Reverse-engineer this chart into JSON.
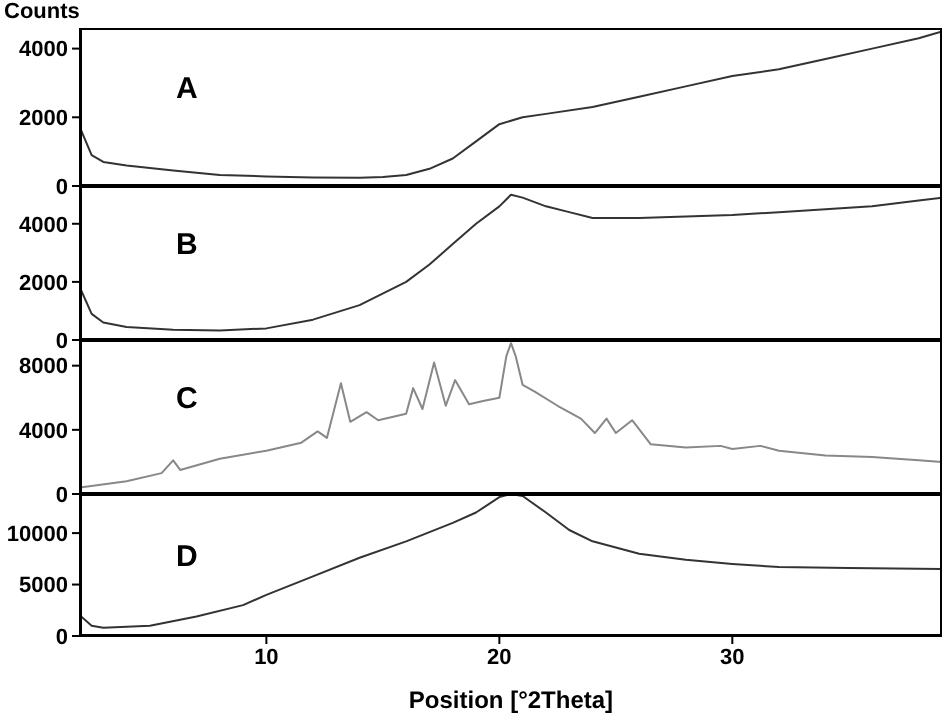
{
  "chart_data": [
    {
      "type": "line",
      "ylabel": "Counts",
      "annotations": [
        "A"
      ],
      "xlim": [
        2,
        39
      ],
      "xticks": [
        10,
        20,
        30
      ],
      "ylim": [
        0,
        4600
      ],
      "yticks": [
        0,
        2000,
        4000
      ],
      "tick_labels": "y",
      "series": [
        {
          "color": "#333333",
          "x": [
            2,
            2.5,
            3,
            4,
            6,
            8,
            10,
            12,
            14,
            15,
            16,
            17,
            18,
            19,
            20,
            21,
            22,
            24,
            26,
            28,
            30,
            32,
            34,
            36,
            38,
            39
          ],
          "values": [
            1700,
            900,
            700,
            600,
            450,
            320,
            280,
            250,
            240,
            260,
            320,
            500,
            800,
            1300,
            1800,
            2000,
            2100,
            2300,
            2600,
            2900,
            3200,
            3400,
            3700,
            4000,
            4300,
            4500
          ]
        }
      ]
    },
    {
      "type": "line",
      "annotations": [
        "B"
      ],
      "xlim": [
        2,
        39
      ],
      "xticks": [
        10,
        20,
        30
      ],
      "ylim": [
        0,
        5300
      ],
      "yticks": [
        0,
        2000,
        4000
      ],
      "tick_labels": "y",
      "series": [
        {
          "color": "#333333",
          "x": [
            2,
            2.5,
            3,
            4,
            6,
            8,
            10,
            12,
            14,
            16,
            17,
            18,
            19,
            20,
            20.5,
            21,
            22,
            23,
            24,
            26,
            28,
            30,
            32,
            34,
            36,
            38,
            39
          ],
          "values": [
            1800,
            900,
            600,
            450,
            350,
            330,
            400,
            700,
            1200,
            2000,
            2600,
            3300,
            4000,
            4600,
            5000,
            4900,
            4600,
            4400,
            4200,
            4200,
            4250,
            4300,
            4400,
            4500,
            4600,
            4800,
            4900
          ]
        }
      ]
    },
    {
      "type": "line",
      "annotations": [
        "C"
      ],
      "xlim": [
        2,
        39
      ],
      "xticks": [
        10,
        20,
        30
      ],
      "ylim": [
        0,
        9600
      ],
      "yticks": [
        0,
        4000,
        8000
      ],
      "tick_labels": "y",
      "series": [
        {
          "color": "#888888",
          "x": [
            2,
            4,
            5.5,
            6,
            6.3,
            8,
            10,
            11.5,
            12.2,
            12.6,
            13.2,
            13.6,
            14.3,
            14.8,
            16,
            16.3,
            16.7,
            17.2,
            17.7,
            18.1,
            18.7,
            19.3,
            20,
            20.3,
            20.5,
            20.7,
            21,
            21.5,
            22.5,
            23.5,
            24.1,
            24.6,
            25,
            25.7,
            26.5,
            28,
            29.5,
            30,
            31.2,
            32,
            34,
            36,
            38,
            39
          ],
          "values": [
            400,
            800,
            1300,
            2100,
            1500,
            2200,
            2700,
            3200,
            3900,
            3500,
            6900,
            4500,
            5100,
            4600,
            5000,
            6600,
            5300,
            8200,
            5500,
            7100,
            5600,
            5800,
            6000,
            8600,
            9400,
            8600,
            6800,
            6400,
            5500,
            4700,
            3800,
            4700,
            3800,
            4600,
            3100,
            2900,
            3000,
            2800,
            3000,
            2700,
            2400,
            2300,
            2100,
            2000
          ]
        }
      ]
    },
    {
      "type": "line",
      "xlabel": "Position [°2Theta]",
      "annotations": [
        "D"
      ],
      "xlim": [
        2,
        39
      ],
      "xticks": [
        10,
        20,
        30
      ],
      "ylim": [
        0,
        13800
      ],
      "yticks": [
        0,
        5000,
        10000
      ],
      "series": [
        {
          "color": "#333333",
          "x": [
            2,
            2.5,
            3,
            5,
            7,
            9,
            10,
            12,
            14,
            16,
            18,
            19,
            20,
            20.5,
            21,
            22,
            23,
            24,
            26,
            28,
            30,
            32,
            35,
            39
          ],
          "values": [
            2000,
            1000,
            800,
            1000,
            1900,
            3000,
            4000,
            5800,
            7600,
            9200,
            11000,
            12000,
            13500,
            13800,
            13600,
            12000,
            10300,
            9200,
            8000,
            7400,
            7000,
            6700,
            6600,
            6500
          ]
        }
      ]
    }
  ]
}
